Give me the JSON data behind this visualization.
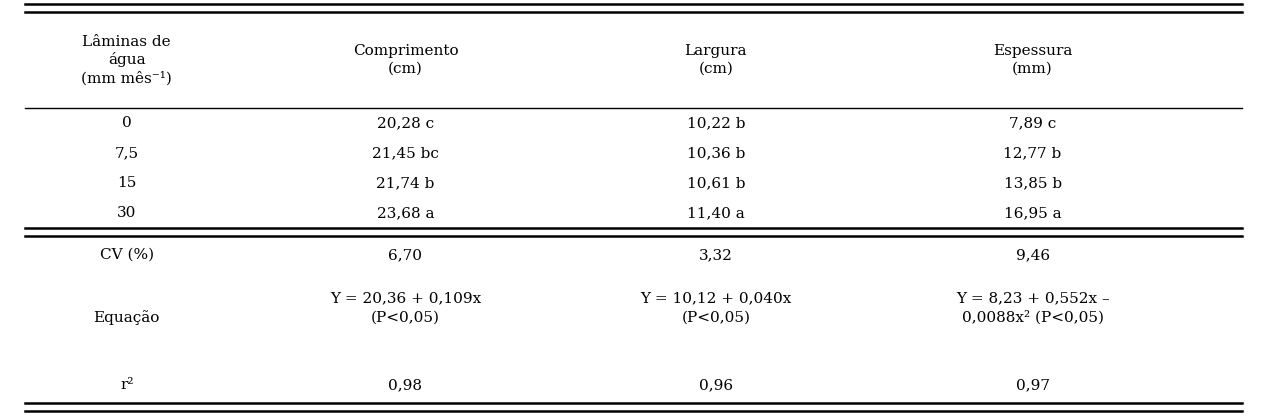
{
  "col_headers": [
    "Lâminas de\nágua\n(mm mês⁻¹)",
    "Comprimento\n(cm)",
    "Largura\n(cm)",
    "Espessura\n(mm)"
  ],
  "data_rows": [
    [
      "0",
      "20,28 c",
      "10,22 b",
      "7,89 c"
    ],
    [
      "7,5",
      "21,45 bc",
      "10,36 b",
      "12,77 b"
    ],
    [
      "15",
      "21,74 b",
      "10,61 b",
      "13,85 b"
    ],
    [
      "30",
      "23,68 a",
      "11,40 a",
      "16,95 a"
    ]
  ],
  "stat_rows": [
    [
      "CV (%)",
      "6,70",
      "3,32",
      "9,46"
    ],
    [
      "Equação",
      "Y = 20,36 + 0,109x\n(P<0,05)",
      "Y = 10,12 + 0,040x\n(P<0,05)",
      "Y = 8,23 + 0,552x –\n0,0088x² (P<0,05)"
    ],
    [
      "r²",
      "0,98",
      "0,96",
      "0,97"
    ]
  ],
  "bg_color": "#ffffff",
  "text_color": "#000000",
  "font_size": 11.0
}
